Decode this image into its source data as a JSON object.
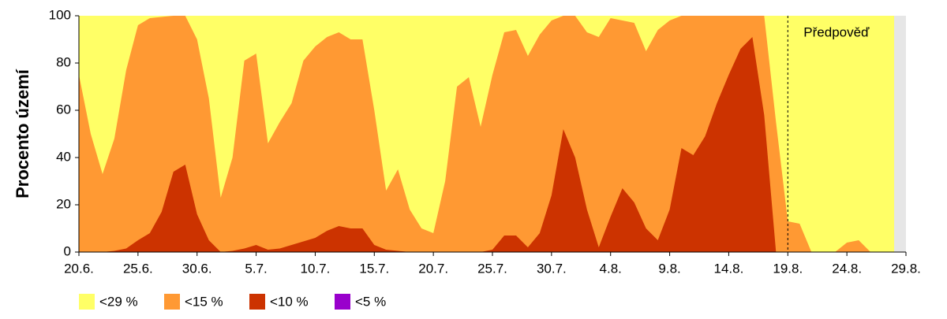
{
  "chart_data": {
    "type": "area",
    "y_label": "Procento území",
    "annotation": "Předpověď",
    "forecast_start": 60,
    "categories": [
      "20.6.",
      null,
      null,
      null,
      null,
      "25.6.",
      null,
      null,
      null,
      null,
      "30.6.",
      null,
      null,
      null,
      null,
      "5.7.",
      null,
      null,
      null,
      null,
      "10.7.",
      null,
      null,
      null,
      null,
      "15.7.",
      null,
      null,
      null,
      null,
      "20.7.",
      null,
      null,
      null,
      null,
      "25.7.",
      null,
      null,
      null,
      null,
      "30.7.",
      null,
      null,
      null,
      null,
      "4.8.",
      null,
      null,
      null,
      null,
      "9.8.",
      null,
      null,
      null,
      null,
      "14.8.",
      null,
      null,
      null,
      null,
      "19.8.",
      null,
      null,
      null,
      null,
      "24.8.",
      null,
      null,
      null,
      null,
      "29.8."
    ],
    "series": [
      {
        "name": "<29 %",
        "color": "#ffff66",
        "values": [
          100,
          100,
          100,
          100,
          100,
          100,
          100,
          100,
          100,
          100,
          100,
          100,
          100,
          100,
          100,
          100,
          100,
          100,
          100,
          100,
          100,
          100,
          100,
          100,
          100,
          100,
          100,
          100,
          100,
          100,
          100,
          100,
          100,
          100,
          100,
          100,
          100,
          100,
          100,
          100,
          100,
          100,
          100,
          100,
          100,
          100,
          100,
          100,
          100,
          100,
          100,
          100,
          100,
          100,
          100,
          100,
          100,
          100,
          100,
          100,
          100,
          100,
          100,
          100,
          100,
          100,
          100,
          100,
          100,
          100,
          null
        ]
      },
      {
        "name": "<15 %",
        "color": "#ff9933",
        "values": [
          75,
          50,
          33,
          48,
          77,
          96,
          99,
          99.5,
          100,
          100,
          90,
          65,
          23,
          40,
          81,
          84,
          46,
          55,
          63,
          81,
          87,
          91,
          93,
          90,
          90,
          60,
          26,
          35,
          18,
          10,
          8,
          30,
          70,
          74,
          53,
          75,
          93,
          94,
          83,
          92,
          98,
          100,
          100,
          93,
          91,
          99,
          98,
          97,
          85,
          94,
          98,
          100,
          100,
          100,
          100,
          100,
          100,
          100,
          100,
          55,
          13,
          12,
          0,
          0,
          0,
          4,
          5,
          0,
          0,
          0,
          null
        ]
      },
      {
        "name": "<10 %",
        "color": "#cc3300",
        "values": [
          0,
          0,
          0,
          0.5,
          1.5,
          5,
          8,
          17,
          34,
          37,
          16,
          5,
          0,
          0.5,
          1.5,
          3,
          1,
          1.5,
          3,
          4.5,
          6,
          9,
          11,
          10,
          10,
          3,
          1,
          0.5,
          0,
          0,
          0,
          0,
          0,
          0,
          0,
          1,
          7,
          7,
          2,
          8,
          24,
          52,
          40,
          18,
          2,
          15,
          27,
          21,
          10,
          5,
          18,
          44,
          41,
          49,
          63,
          75,
          86,
          91,
          58,
          0,
          0,
          0,
          0,
          0,
          0,
          0,
          0,
          0,
          0,
          0,
          null
        ]
      },
      {
        "name": "<5 %",
        "color": "#9900cc",
        "values": [
          0,
          0,
          0,
          0,
          0,
          0,
          0,
          0,
          0,
          0,
          0,
          0,
          0,
          0,
          0,
          0,
          0,
          0,
          0,
          0,
          0,
          0,
          0,
          0,
          0,
          0,
          0,
          0,
          0,
          0,
          0,
          0,
          0,
          0,
          0,
          0,
          0,
          0,
          0,
          0,
          0,
          0,
          0,
          0,
          0,
          0,
          0,
          0,
          0,
          0,
          0,
          0,
          0,
          0,
          0,
          0,
          0,
          0,
          0,
          0,
          0,
          0,
          0,
          0,
          0,
          0,
          0,
          0,
          0,
          0,
          null
        ]
      }
    ],
    "ylim": [
      0,
      100
    ],
    "yticks": [
      0,
      20,
      40,
      60,
      80,
      100
    ]
  }
}
